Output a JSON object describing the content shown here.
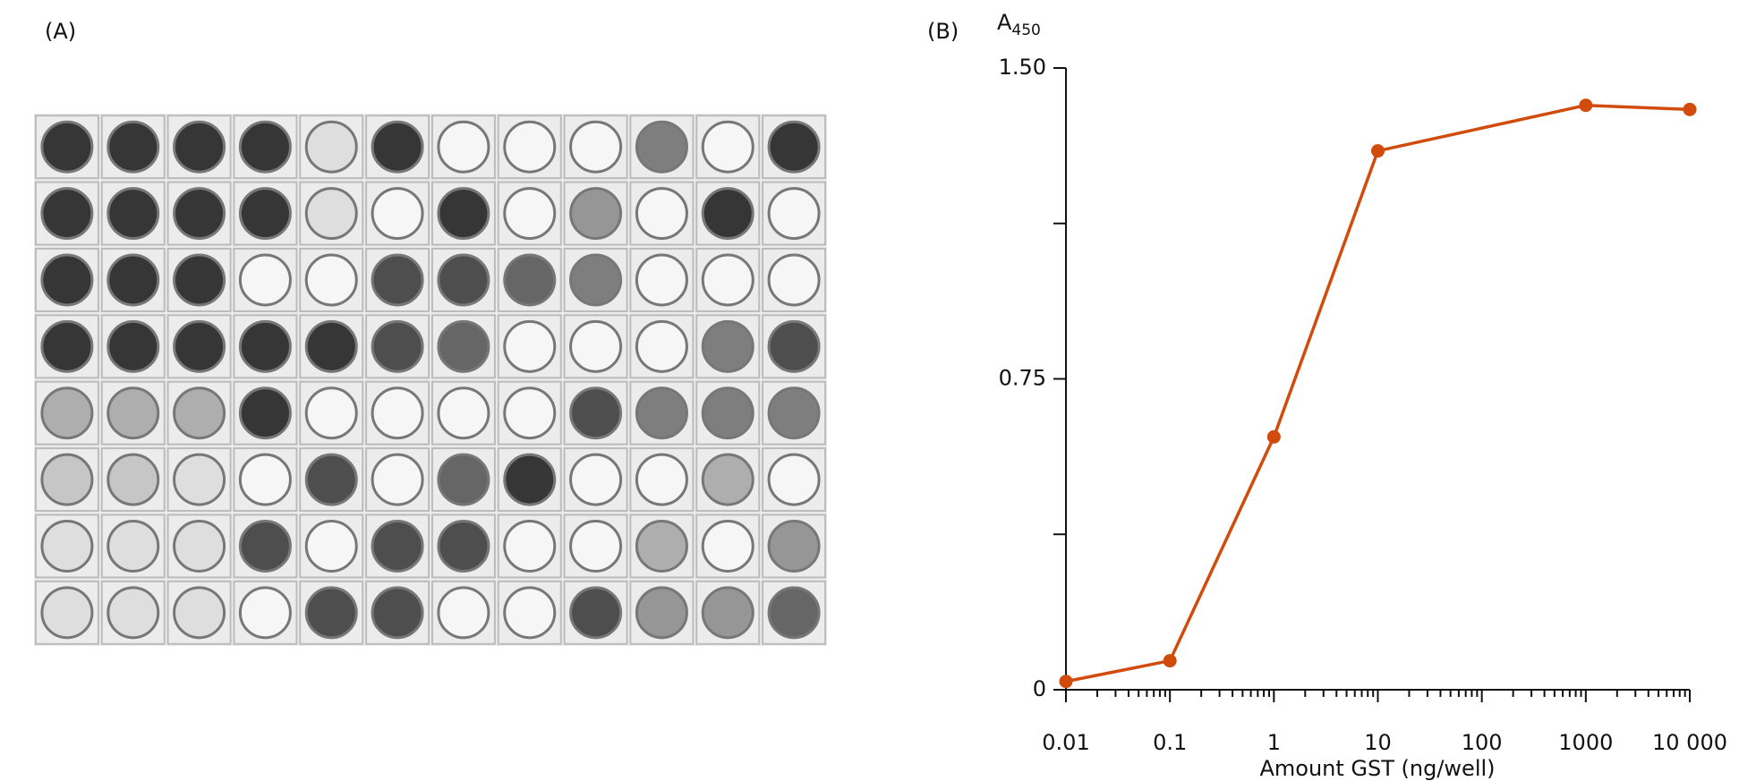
{
  "panel_a": {
    "label": "(A)"
  },
  "chart_data": {
    "type": "line",
    "panel_label": "(B)",
    "y_label": "A",
    "y_label_sub": "450",
    "x_label": "Amount GST (ng/well)",
    "x": [
      0.01,
      0.1,
      1,
      10,
      1000,
      10000
    ],
    "series": [
      {
        "color": "#d14b0c",
        "values": [
          0.02,
          0.07,
          0.61,
          1.3,
          1.41,
          1.4
        ]
      }
    ],
    "xlim": [
      0.01,
      10000
    ],
    "xlog": true,
    "xticks": [
      0.01,
      0.1,
      1,
      10,
      100,
      1000,
      {
        "value": 10000,
        "label": "10 000"
      }
    ],
    "ylim": [
      0,
      1.5
    ],
    "yticks": [
      0,
      0.75,
      {
        "value": 1.5,
        "label": "1.50"
      }
    ],
    "yminorticks": [
      0.375,
      1.125
    ]
  }
}
